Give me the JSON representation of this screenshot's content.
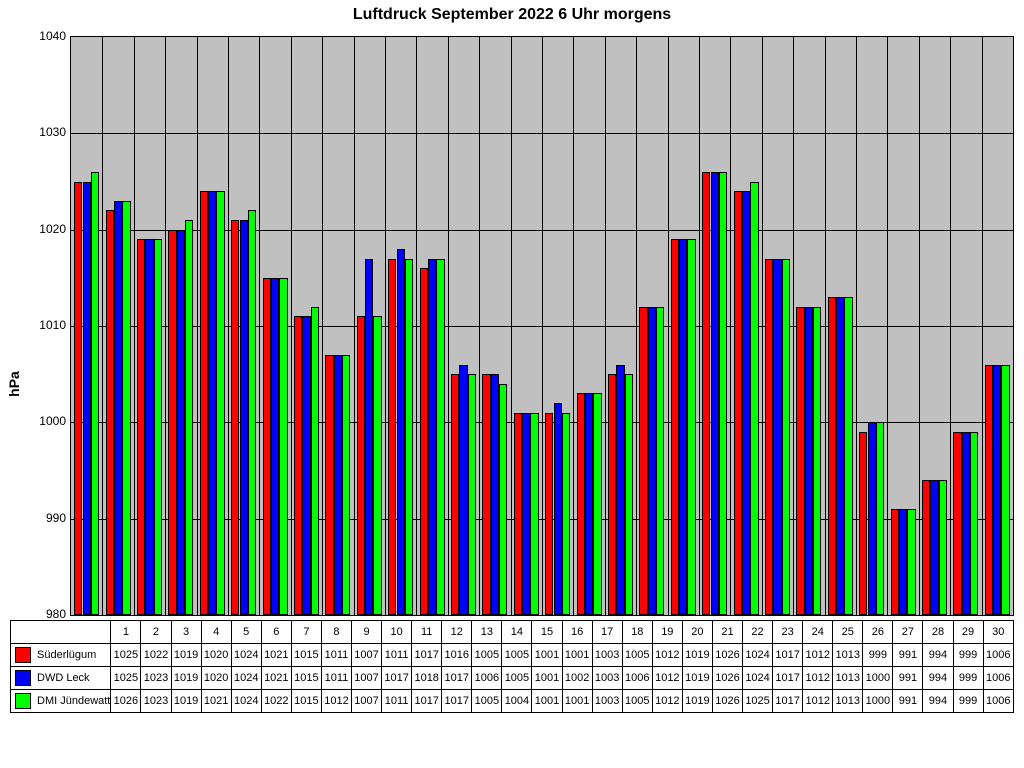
{
  "chart": {
    "type": "bar",
    "title": "Luftdruck September 2022 6 Uhr morgens",
    "title_fontsize": 16,
    "ylabel": "hPa",
    "ylabel_fontsize": 14,
    "ymin": 980,
    "ymax": 1040,
    "ytick_step": 10,
    "plot_background": "#c0c0c0",
    "page_background": "#ffffff",
    "grid_color": "#000000",
    "bar_border_color": "#000000",
    "days": [
      "1",
      "2",
      "3",
      "4",
      "5",
      "6",
      "7",
      "8",
      "9",
      "10",
      "11",
      "12",
      "13",
      "14",
      "15",
      "16",
      "17",
      "18",
      "19",
      "20",
      "21",
      "22",
      "23",
      "24",
      "25",
      "26",
      "27",
      "28",
      "29",
      "30"
    ],
    "series": [
      {
        "name": "Süderlügum",
        "color": "#ff0000",
        "values": [
          1025,
          1022,
          1019,
          1020,
          1024,
          1021,
          1015,
          1011,
          1007,
          1011,
          1017,
          1016,
          1005,
          1005,
          1001,
          1001,
          1003,
          1005,
          1012,
          1019,
          1026,
          1024,
          1017,
          1012,
          1013,
          999,
          991,
          994,
          999,
          1006
        ]
      },
      {
        "name": "DWD Leck",
        "color": "#0000ff",
        "values": [
          1025,
          1023,
          1019,
          1020,
          1024,
          1021,
          1015,
          1011,
          1007,
          1017,
          1018,
          1017,
          1006,
          1005,
          1001,
          1002,
          1003,
          1006,
          1012,
          1019,
          1026,
          1024,
          1017,
          1012,
          1013,
          1000,
          991,
          994,
          999,
          1006
        ]
      },
      {
        "name": "DMI Jündewatt",
        "color": "#00ff00",
        "values": [
          1026,
          1023,
          1019,
          1021,
          1024,
          1022,
          1015,
          1012,
          1007,
          1011,
          1017,
          1017,
          1005,
          1004,
          1001,
          1001,
          1003,
          1005,
          1012,
          1019,
          1026,
          1025,
          1017,
          1012,
          1013,
          1000,
          991,
          994,
          999,
          1006
        ]
      }
    ]
  }
}
